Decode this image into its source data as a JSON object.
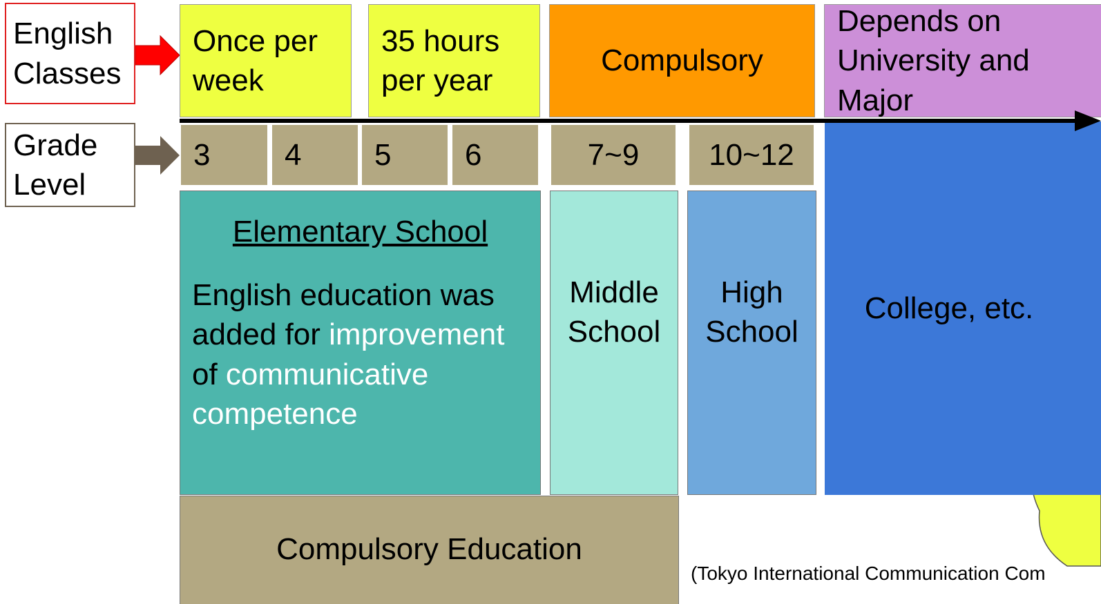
{
  "labels": {
    "english_classes": "English Classes",
    "grade_level": "Grade Level"
  },
  "english_classes": [
    "Once per week",
    "35 hours per year",
    "Compulsory",
    "Depends on University and Major"
  ],
  "grades": [
    "3",
    "4",
    "5",
    "6",
    "7~9",
    "10~12"
  ],
  "schools": {
    "elementary": {
      "title": "Elementary School",
      "text": [
        "English education was added for ",
        "improvement",
        " of ",
        "communicative competence"
      ]
    },
    "middle": "Middle School",
    "high": "High School",
    "college": "College, etc."
  },
  "compulsory_education": "Compulsory Education",
  "source": "(Tokyo International Communication Com"
}
